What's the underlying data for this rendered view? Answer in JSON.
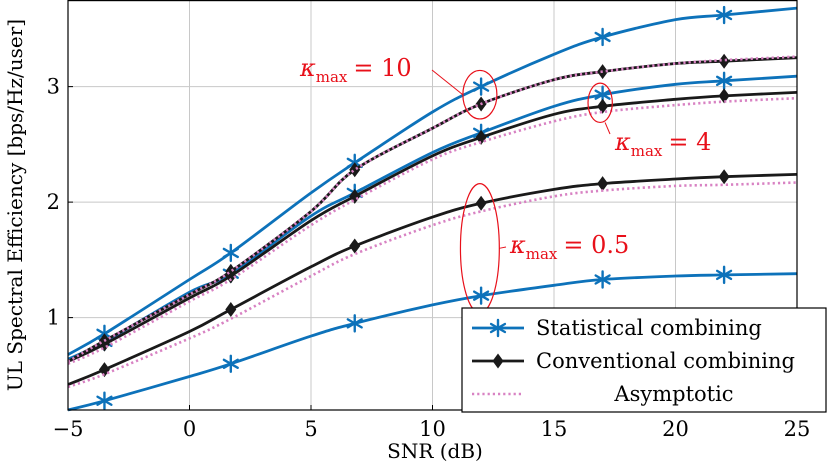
{
  "chart_data": {
    "type": "line",
    "title": "",
    "xlabel": "SNR (dB)",
    "ylabel": "UL Spectral Efficiency [bps/Hz/user]",
    "xlim": [
      -5,
      25
    ],
    "ylim": [
      0.2,
      3.75
    ],
    "xticks": [
      -5,
      0,
      5,
      10,
      15,
      20,
      25
    ],
    "xtick_labels": [
      "−5",
      "0",
      "5",
      "10",
      "15",
      "20",
      "25"
    ],
    "yticks": [
      1,
      2,
      3
    ],
    "ytick_labels": [
      "1",
      "2",
      "3"
    ],
    "grid": true,
    "legend_position": "bottom-right",
    "marker_x": [
      -3.5,
      1.7,
      6.8,
      12,
      17,
      22
    ],
    "series": [
      {
        "name": "Statistical combining",
        "group": "kmax=10",
        "style": "statistical",
        "x": [
          -5,
          -3.5,
          0,
          1.7,
          5,
          6.8,
          10,
          12,
          15,
          17,
          20,
          22,
          25
        ],
        "y": [
          0.68,
          0.86,
          1.33,
          1.56,
          2.08,
          2.34,
          2.78,
          3.0,
          3.28,
          3.43,
          3.58,
          3.62,
          3.68
        ]
      },
      {
        "name": "Conventional combining",
        "group": "kmax=10",
        "style": "conventional",
        "x": [
          -5,
          -3.5,
          0,
          1.7,
          5,
          6.8,
          10,
          12,
          15,
          17,
          20,
          22,
          25
        ],
        "y": [
          0.62,
          0.8,
          1.2,
          1.4,
          1.92,
          2.28,
          2.64,
          2.85,
          3.06,
          3.13,
          3.2,
          3.22,
          3.25
        ]
      },
      {
        "name": "Asymptotic",
        "group": "kmax=10",
        "style": "asymptotic",
        "x": [
          -5,
          -3.5,
          0,
          1.7,
          5,
          6.8,
          10,
          12,
          15,
          17,
          20,
          22,
          25
        ],
        "y": [
          0.62,
          0.8,
          1.2,
          1.4,
          1.92,
          2.28,
          2.64,
          2.85,
          3.06,
          3.13,
          3.2,
          3.23,
          3.26
        ]
      },
      {
        "name": "Statistical combining",
        "group": "kmax=4",
        "style": "statistical",
        "x": [
          -5,
          -3.5,
          0,
          1.7,
          5,
          6.8,
          10,
          12,
          15,
          17,
          20,
          22,
          25
        ],
        "y": [
          0.64,
          0.79,
          1.22,
          1.38,
          1.88,
          2.08,
          2.43,
          2.6,
          2.83,
          2.93,
          3.02,
          3.05,
          3.09
        ]
      },
      {
        "name": "Conventional combining",
        "group": "kmax=4",
        "style": "conventional",
        "x": [
          -5,
          -3.5,
          0,
          1.7,
          5,
          6.8,
          10,
          12,
          15,
          17,
          20,
          22,
          25
        ],
        "y": [
          0.62,
          0.77,
          1.17,
          1.36,
          1.84,
          2.05,
          2.4,
          2.56,
          2.76,
          2.83,
          2.89,
          2.92,
          2.95
        ]
      },
      {
        "name": "Asymptotic",
        "group": "kmax=4",
        "style": "asymptotic",
        "x": [
          -5,
          -3.5,
          0,
          1.7,
          5,
          6.8,
          10,
          12,
          15,
          17,
          20,
          22,
          25
        ],
        "y": [
          0.6,
          0.74,
          1.14,
          1.33,
          1.8,
          2.02,
          2.37,
          2.52,
          2.7,
          2.78,
          2.84,
          2.87,
          2.9
        ]
      },
      {
        "name": "Conventional combining",
        "group": "kmax=0.5",
        "style": "conventional",
        "x": [
          -5,
          -3.5,
          0,
          1.7,
          5,
          6.8,
          10,
          12,
          15,
          17,
          20,
          22,
          25
        ],
        "y": [
          0.42,
          0.55,
          0.88,
          1.07,
          1.44,
          1.62,
          1.87,
          1.99,
          2.11,
          2.16,
          2.2,
          2.22,
          2.24
        ]
      },
      {
        "name": "Asymptotic",
        "group": "kmax=0.5",
        "style": "asymptotic",
        "x": [
          -5,
          -3.5,
          0,
          1.7,
          5,
          6.8,
          10,
          12,
          15,
          17,
          20,
          22,
          25
        ],
        "y": [
          0.4,
          0.51,
          0.82,
          0.99,
          1.36,
          1.55,
          1.8,
          1.92,
          2.05,
          2.1,
          2.14,
          2.15,
          2.17
        ]
      },
      {
        "name": "Statistical combining",
        "group": "kmax=0.5",
        "style": "statistical",
        "x": [
          -5,
          -3.5,
          0,
          1.7,
          5,
          6.8,
          10,
          12,
          15,
          17,
          20,
          22,
          25
        ],
        "y": [
          0.2,
          0.28,
          0.49,
          0.6,
          0.84,
          0.95,
          1.11,
          1.19,
          1.28,
          1.33,
          1.36,
          1.37,
          1.38
        ]
      }
    ],
    "annotations": [
      {
        "kappa": "κ",
        "sub": "max",
        "value": "= 10",
        "ellipse": {
          "x": 11.95,
          "y": 2.93,
          "rx": 0.7,
          "ry": 0.21
        },
        "line_to": {
          "x": 11.25,
          "y": 2.93
        }
      },
      {
        "kappa": "κ",
        "sub": "max",
        "value": "= 4",
        "ellipse": {
          "x": 16.9,
          "y": 2.86,
          "rx": 0.5,
          "ry": 0.17
        },
        "line_to": {
          "x": 17.1,
          "y": 2.69
        }
      },
      {
        "kappa": "κ",
        "sub": "max",
        "value": "= 0.5",
        "ellipse": {
          "x": 11.95,
          "y": 1.6,
          "rx": 0.8,
          "ry": 0.56
        },
        "line_to": {
          "x": 12.75,
          "y": 1.6
        }
      }
    ],
    "colors": {
      "statistical": "#0d72ba",
      "conventional": "#1a1a1a",
      "asymptotic": "#d882c3",
      "annotation": "#e8101a",
      "grid": "#c8c8c8"
    }
  }
}
